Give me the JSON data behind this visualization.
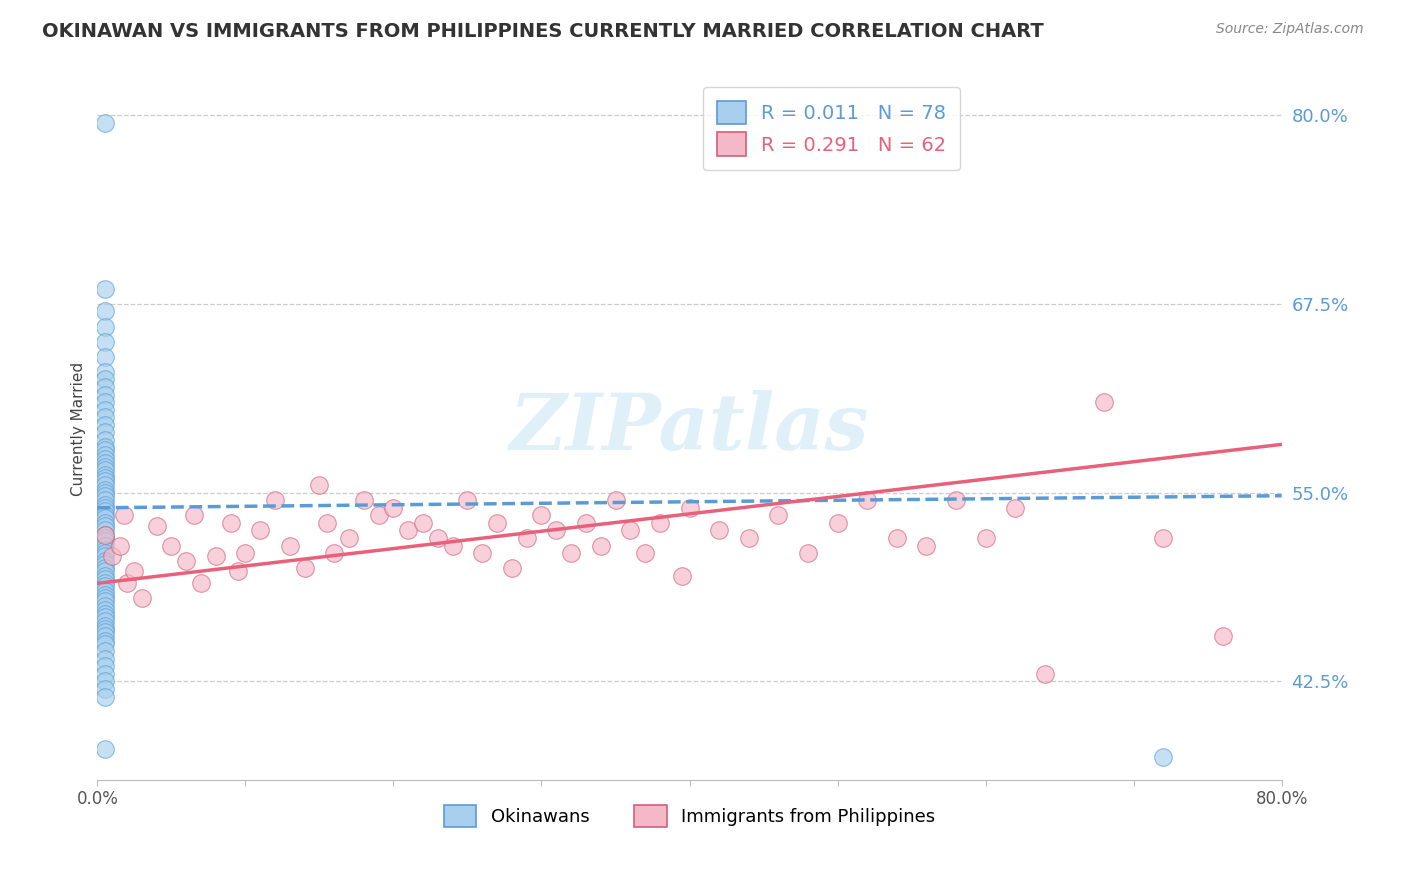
{
  "title": "OKINAWAN VS IMMIGRANTS FROM PHILIPPINES CURRENTLY MARRIED CORRELATION CHART",
  "source_text": "Source: ZipAtlas.com",
  "ylabel": "Currently Married",
  "legend_label_1": "Okinawans",
  "legend_label_2": "Immigrants from Philippines",
  "r1": 0.011,
  "n1": 78,
  "r2": 0.291,
  "n2": 62,
  "color1": "#a8d0ee",
  "color2": "#f5b8c8",
  "trendline1_color": "#5b9bd5",
  "trendline2_color": "#e8607a",
  "xlim": [
    0,
    0.8
  ],
  "ylim": [
    0.36,
    0.825
  ],
  "yticks": [
    0.425,
    0.55,
    0.675,
    0.8
  ],
  "ytick_labels": [
    "42.5%",
    "55.0%",
    "67.5%",
    "80.0%"
  ],
  "xticks": [
    0.0,
    0.1,
    0.2,
    0.3,
    0.4,
    0.5,
    0.6,
    0.7,
    0.8
  ],
  "xtick_labels": [
    "0.0%",
    "",
    "",
    "",
    "",
    "",
    "",
    "",
    "80.0%"
  ],
  "watermark": "ZIPatlas",
  "trendline1_x0": 0.0,
  "trendline1_x1": 0.8,
  "trendline1_y0": 0.54,
  "trendline1_y1": 0.548,
  "trendline2_x0": 0.0,
  "trendline2_x1": 0.8,
  "trendline2_y0": 0.49,
  "trendline2_y1": 0.582,
  "okinawan_x": [
    0.005,
    0.005,
    0.005,
    0.005,
    0.005,
    0.005,
    0.005,
    0.005,
    0.005,
    0.005,
    0.005,
    0.005,
    0.005,
    0.005,
    0.005,
    0.005,
    0.005,
    0.005,
    0.005,
    0.005,
    0.005,
    0.005,
    0.005,
    0.005,
    0.005,
    0.005,
    0.005,
    0.005,
    0.005,
    0.005,
    0.005,
    0.005,
    0.005,
    0.005,
    0.005,
    0.005,
    0.005,
    0.005,
    0.005,
    0.005,
    0.005,
    0.005,
    0.005,
    0.005,
    0.005,
    0.005,
    0.005,
    0.005,
    0.005,
    0.005,
    0.005,
    0.005,
    0.005,
    0.005,
    0.005,
    0.005,
    0.005,
    0.005,
    0.005,
    0.005,
    0.005,
    0.005,
    0.005,
    0.005,
    0.005,
    0.005,
    0.005,
    0.005,
    0.005,
    0.005,
    0.005,
    0.005,
    0.005,
    0.005,
    0.005,
    0.005,
    0.005,
    0.72
  ],
  "okinawan_y": [
    0.795,
    0.685,
    0.67,
    0.66,
    0.65,
    0.64,
    0.63,
    0.625,
    0.62,
    0.615,
    0.61,
    0.605,
    0.6,
    0.595,
    0.59,
    0.585,
    0.58,
    0.578,
    0.575,
    0.572,
    0.57,
    0.567,
    0.565,
    0.562,
    0.56,
    0.558,
    0.555,
    0.552,
    0.55,
    0.548,
    0.545,
    0.542,
    0.54,
    0.538,
    0.535,
    0.533,
    0.53,
    0.528,
    0.525,
    0.522,
    0.52,
    0.518,
    0.515,
    0.512,
    0.51,
    0.508,
    0.505,
    0.503,
    0.5,
    0.498,
    0.495,
    0.493,
    0.49,
    0.488,
    0.485,
    0.482,
    0.48,
    0.478,
    0.475,
    0.472,
    0.47,
    0.468,
    0.465,
    0.462,
    0.46,
    0.458,
    0.455,
    0.452,
    0.45,
    0.445,
    0.44,
    0.435,
    0.43,
    0.425,
    0.42,
    0.415,
    0.38,
    0.375
  ],
  "phil_x": [
    0.005,
    0.01,
    0.015,
    0.018,
    0.02,
    0.025,
    0.03,
    0.04,
    0.05,
    0.06,
    0.065,
    0.07,
    0.08,
    0.09,
    0.095,
    0.1,
    0.11,
    0.12,
    0.13,
    0.14,
    0.15,
    0.155,
    0.16,
    0.17,
    0.18,
    0.19,
    0.2,
    0.21,
    0.22,
    0.23,
    0.24,
    0.25,
    0.26,
    0.27,
    0.28,
    0.29,
    0.3,
    0.31,
    0.32,
    0.33,
    0.34,
    0.35,
    0.36,
    0.37,
    0.38,
    0.395,
    0.4,
    0.42,
    0.44,
    0.46,
    0.48,
    0.5,
    0.52,
    0.54,
    0.56,
    0.58,
    0.6,
    0.62,
    0.64,
    0.68,
    0.72,
    0.76
  ],
  "phil_y": [
    0.522,
    0.508,
    0.515,
    0.535,
    0.49,
    0.498,
    0.48,
    0.528,
    0.515,
    0.505,
    0.535,
    0.49,
    0.508,
    0.53,
    0.498,
    0.51,
    0.525,
    0.545,
    0.515,
    0.5,
    0.555,
    0.53,
    0.51,
    0.52,
    0.545,
    0.535,
    0.54,
    0.525,
    0.53,
    0.52,
    0.515,
    0.545,
    0.51,
    0.53,
    0.5,
    0.52,
    0.535,
    0.525,
    0.51,
    0.53,
    0.515,
    0.545,
    0.525,
    0.51,
    0.53,
    0.495,
    0.54,
    0.525,
    0.52,
    0.535,
    0.51,
    0.53,
    0.545,
    0.52,
    0.515,
    0.545,
    0.52,
    0.54,
    0.43,
    0.61,
    0.52,
    0.455
  ]
}
